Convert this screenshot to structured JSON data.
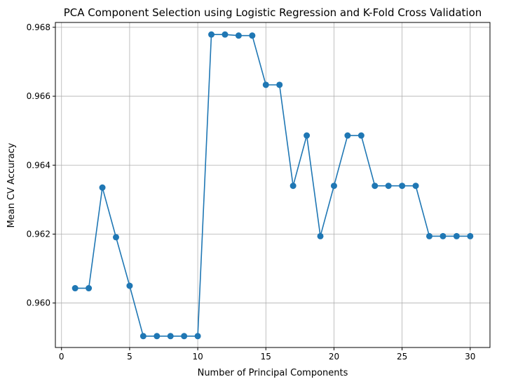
{
  "chart_data": {
    "type": "line",
    "title": "PCA Component Selection using Logistic Regression and K-Fold Cross Validation",
    "xlabel": "Number of Principal Components",
    "ylabel": "Mean CV Accuracy",
    "xlim": [
      -0.45,
      31.45
    ],
    "ylim": [
      0.95871,
      0.96814
    ],
    "xticks": [
      0,
      5,
      10,
      15,
      20,
      25,
      30
    ],
    "xtick_labels": [
      "0",
      "5",
      "10",
      "15",
      "20",
      "25",
      "30"
    ],
    "yticks": [
      0.96,
      0.962,
      0.964,
      0.966,
      0.968
    ],
    "ytick_labels": [
      "0.960",
      "0.962",
      "0.964",
      "0.966",
      "0.968"
    ],
    "grid": true,
    "color": "#1f77b4",
    "series": [
      {
        "x": [
          1,
          2,
          3,
          4,
          5,
          6,
          7,
          8,
          9,
          10,
          11,
          12,
          13,
          14,
          15,
          16,
          17,
          18,
          19,
          20,
          21,
          22,
          23,
          24,
          25,
          26,
          27,
          28,
          29,
          30
        ],
        "values": [
          0.96043,
          0.96043,
          0.96335,
          0.96191,
          0.9605,
          0.95904,
          0.95904,
          0.95904,
          0.95904,
          0.95904,
          0.96779,
          0.96779,
          0.96776,
          0.96776,
          0.96633,
          0.96633,
          0.9634,
          0.96486,
          0.96194,
          0.9634,
          0.96486,
          0.96486,
          0.9634,
          0.9634,
          0.9634,
          0.9634,
          0.96194,
          0.96194,
          0.96194,
          0.96194
        ]
      }
    ]
  }
}
